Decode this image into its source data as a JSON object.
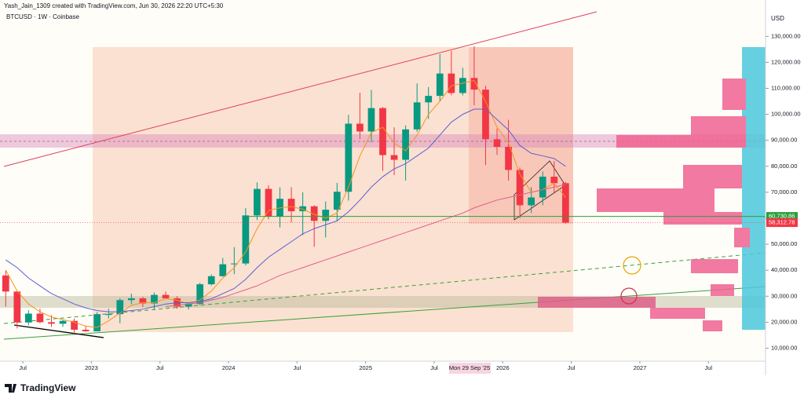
{
  "header": {
    "credit": "Yash_Jain_1309 created with TradingView.com, Jun 30, 2026 22:20 UTC+5:30",
    "symbol": "BTCUSD · 1W · Coinbase",
    "currency": "USD",
    "brand": "TradingView",
    "cursor_date": "Mon 29 Sep '25"
  },
  "chart_data": {
    "type": "candlestick",
    "x": [
      "2022-05",
      "2022-06",
      "2022-07",
      "2022-08",
      "2022-09",
      "2022-10",
      "2022-11",
      "2022-12",
      "2023-01",
      "2023-02",
      "2023-03",
      "2023-04",
      "2023-05",
      "2023-06",
      "2023-07",
      "2023-08",
      "2023-09",
      "2023-10",
      "2023-11",
      "2023-12",
      "2024-01",
      "2024-02",
      "2024-03",
      "2024-04",
      "2024-05",
      "2024-06",
      "2024-07",
      "2024-08",
      "2024-09",
      "2024-10",
      "2024-11",
      "2024-12",
      "2025-01",
      "2025-02",
      "2025-03",
      "2025-04",
      "2025-05",
      "2025-06",
      "2025-07",
      "2025-08",
      "2025-09",
      "2025-10",
      "2025-11",
      "2025-12",
      "2026-01",
      "2026-02",
      "2026-03",
      "2026-04",
      "2026-05",
      "2026-06"
    ],
    "open": [
      38000,
      31800,
      19900,
      23300,
      20000,
      19400,
      20500,
      17100,
      16500,
      23100,
      23100,
      28500,
      29200,
      27200,
      30500,
      29200,
      26000,
      27000,
      34600,
      37700,
      42300,
      42600,
      61100,
      71300,
      60600,
      67500,
      62700,
      64600,
      59000,
      63300,
      70200,
      96400,
      93400,
      102400,
      84300,
      82500,
      94200,
      104600,
      107100,
      115700,
      108200,
      114000,
      109500,
      90400,
      87500,
      78600,
      65000,
      68000,
      76000,
      73500
    ],
    "high": [
      40000,
      32000,
      24600,
      25200,
      22700,
      21000,
      21400,
      18400,
      23900,
      25200,
      29200,
      31000,
      29800,
      31400,
      31800,
      30000,
      27500,
      35200,
      38400,
      44700,
      48900,
      63900,
      73800,
      72700,
      71900,
      72000,
      70000,
      65000,
      66500,
      73600,
      99800,
      108300,
      109400,
      102800,
      95000,
      95700,
      111900,
      110500,
      123200,
      124400,
      117900,
      126200,
      111000,
      94500,
      97900,
      79500,
      72000,
      78000,
      82000,
      74000
    ],
    "low": [
      26000,
      17600,
      18800,
      19600,
      18200,
      18200,
      15500,
      16300,
      16500,
      21400,
      19600,
      27000,
      25800,
      24800,
      28900,
      25200,
      24900,
      26600,
      34100,
      37600,
      38500,
      41900,
      59300,
      59600,
      56500,
      58400,
      53500,
      49000,
      52600,
      58900,
      66800,
      90500,
      89200,
      78200,
      76600,
      74500,
      93300,
      98200,
      105100,
      107300,
      107300,
      103500,
      80500,
      84400,
      74500,
      60000,
      62000,
      65000,
      70000,
      58000
    ],
    "close": [
      31800,
      19900,
      23300,
      20000,
      19400,
      20500,
      17100,
      16500,
      23100,
      23100,
      28500,
      29200,
      27200,
      30500,
      29200,
      26000,
      27000,
      34600,
      37700,
      42300,
      42600,
      61100,
      71300,
      60600,
      67500,
      62700,
      64600,
      59000,
      63300,
      70200,
      96400,
      93400,
      102400,
      84300,
      82500,
      94200,
      104600,
      107100,
      115700,
      108200,
      114000,
      109500,
      90400,
      87500,
      78600,
      65000,
      68000,
      76000,
      73500,
      58300
    ],
    "up_color": "#089981",
    "down_color": "#f23645",
    "series": [
      {
        "name": "EMA 20",
        "color": "#f7931a",
        "values": [
          40000,
          32000,
          27000,
          24000,
          22000,
          21000,
          20000,
          18500,
          18000,
          20500,
          23500,
          26500,
          27500,
          27500,
          29000,
          28500,
          27000,
          28500,
          32000,
          37000,
          41000,
          47000,
          56000,
          63000,
          64000,
          64500,
          63500,
          61500,
          60000,
          62000,
          72000,
          84000,
          93000,
          95000,
          89000,
          86000,
          92000,
          100000,
          105000,
          111000,
          112000,
          113000,
          105000,
          95000,
          89000,
          77000,
          70000,
          71000,
          73500,
          68000
        ]
      },
      {
        "name": "SMA 50",
        "color": "#5b5fd6",
        "values": [
          44000,
          41000,
          37000,
          34000,
          31000,
          29000,
          27000,
          25500,
          24500,
          24000,
          24000,
          24500,
          25000,
          26000,
          27000,
          27500,
          27500,
          28000,
          29000,
          31000,
          33000,
          36500,
          41000,
          45000,
          48000,
          51000,
          54000,
          56000,
          57500,
          59000,
          62500,
          67000,
          72000,
          76000,
          79000,
          81000,
          84000,
          87000,
          92000,
          97000,
          100000,
          102000,
          102000,
          98000,
          94000,
          88000,
          85000,
          84000,
          83000,
          80000
        ]
      },
      {
        "name": "SMA 200",
        "color": "#e0608a",
        "values": [
          null,
          null,
          null,
          null,
          null,
          null,
          null,
          null,
          null,
          null,
          null,
          null,
          null,
          null,
          26000,
          26500,
          27000,
          27500,
          28500,
          29500,
          31000,
          32500,
          34000,
          36000,
          38000,
          39500,
          41000,
          42500,
          44000,
          45500,
          47000,
          48500,
          50000,
          51500,
          53000,
          54500,
          56000,
          57500,
          59000,
          60500,
          62000,
          64000,
          65500,
          67000,
          68000,
          69000,
          70000,
          71000,
          72000,
          73000
        ]
      }
    ],
    "levels": [
      {
        "value": 60730.86,
        "label": "60,730.86",
        "color": "#2e9e3a"
      },
      {
        "value": 58312.78,
        "label": "58,312.78",
        "color": "#f23645"
      }
    ],
    "ylim": [
      5000,
      144000
    ],
    "yticks": [
      {
        "value": 10000,
        "label": "10,000.00"
      },
      {
        "value": 20000,
        "label": "20,000.00"
      },
      {
        "value": 30000,
        "label": "30,000.00"
      },
      {
        "value": 40000,
        "label": "40,000.00"
      },
      {
        "value": 50000,
        "label": "50,000.00"
      },
      {
        "value": 60000,
        "label": "60,000.00"
      },
      {
        "value": 70000,
        "label": "70,000.00"
      },
      {
        "value": 80000,
        "label": "80,000.00"
      },
      {
        "value": 90000,
        "label": "90,000.00"
      },
      {
        "value": 100000,
        "label": "100,000.00"
      },
      {
        "value": 110000,
        "label": "110,000.00"
      },
      {
        "value": 120000,
        "label": "120,000.00"
      },
      {
        "value": 130000,
        "label": "130,000.00"
      }
    ],
    "xlim": [
      "2022-05",
      "2027-12"
    ],
    "xticks": [
      {
        "value": "2022-07",
        "label": "Jul"
      },
      {
        "value": "2023-01",
        "label": "2023"
      },
      {
        "value": "2023-07",
        "label": "Jul"
      },
      {
        "value": "2024-01",
        "label": "2024"
      },
      {
        "value": "2024-07",
        "label": "Jul"
      },
      {
        "value": "2025-01",
        "label": "2025"
      },
      {
        "value": "2025-07",
        "label": "Jul"
      },
      {
        "value": "2026-01",
        "label": "2026"
      },
      {
        "value": "2026-07",
        "label": "Jul"
      },
      {
        "value": "2027-01",
        "label": "2027"
      },
      {
        "value": "2027-07",
        "label": "Jul"
      }
    ]
  }
}
